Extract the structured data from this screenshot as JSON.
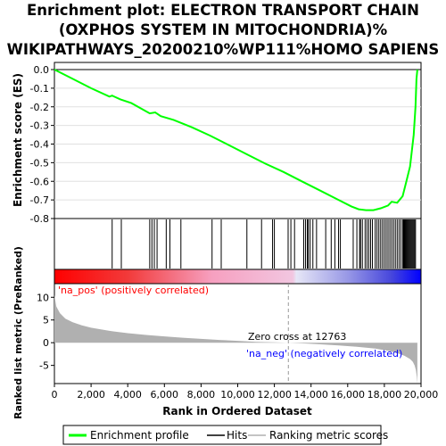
{
  "chart_data": {
    "type": "line",
    "title_lines": [
      "Enrichment plot: ELECTRON TRANSPORT CHAIN",
      "(OXPHOS SYSTEM IN MITOCHONDRIA)%",
      "WIKIPATHWAYS_20200210%WP111%HOMO SAPIENS"
    ],
    "es_panel": {
      "ylabel": "Enrichment score (ES)",
      "ylim": [
        -0.8,
        0.0
      ],
      "yticks": [
        "0.0",
        "-0.1",
        "-0.2",
        "-0.3",
        "-0.4",
        "-0.5",
        "-0.6",
        "-0.7",
        "-0.8"
      ],
      "series": [
        {
          "name": "Enrichment profile",
          "color": "#00ff00",
          "x": [
            0,
            1000,
            2000,
            3000,
            3150,
            3600,
            4200,
            5200,
            5500,
            5800,
            6500,
            7500,
            8500,
            9500,
            10500,
            11500,
            12500,
            13500,
            14500,
            15500,
            16200,
            16600,
            17000,
            17400,
            17800,
            18200,
            18400,
            18700,
            19000,
            19200,
            19400,
            19600,
            19700,
            19750,
            19800
          ],
          "y": [
            0.0,
            -0.05,
            -0.1,
            -0.145,
            -0.14,
            -0.16,
            -0.18,
            -0.235,
            -0.23,
            -0.25,
            -0.27,
            -0.31,
            -0.355,
            -0.405,
            -0.455,
            -0.505,
            -0.55,
            -0.6,
            -0.65,
            -0.7,
            -0.735,
            -0.75,
            -0.755,
            -0.755,
            -0.745,
            -0.73,
            -0.71,
            -0.715,
            -0.68,
            -0.6,
            -0.52,
            -0.35,
            -0.2,
            -0.05,
            0.0
          ]
        }
      ]
    },
    "hits": {
      "name": "Hits",
      "x": [
        3150,
        3650,
        5200,
        5320,
        5450,
        5600,
        6100,
        6300,
        6900,
        8600,
        9100,
        10500,
        11300,
        11900,
        12000,
        12750,
        12900,
        13100,
        13600,
        13700,
        13800,
        13850,
        13950,
        14100,
        14300,
        14800,
        15100,
        15300,
        15500,
        15600,
        16300,
        16500,
        16650,
        16700,
        16800,
        16950,
        17050,
        17150,
        17250,
        17350,
        17500,
        17600,
        17700,
        17800,
        17900,
        18000,
        18100,
        18200,
        18300,
        18400,
        18500,
        18600,
        18700,
        18800,
        18900,
        19000,
        19050,
        19100,
        19150,
        19200,
        19250,
        19300,
        19350,
        19400,
        19450,
        19500,
        19550,
        19600,
        19650,
        19700
      ]
    },
    "metric_panel": {
      "ylabel": "Ranked list metric (PreRanked)",
      "ylim": [
        -9,
        13
      ],
      "yticks": [
        "10",
        "5",
        "0",
        "-5"
      ],
      "series": [
        {
          "name": "Ranking metric scores",
          "color": "#b0b0b0",
          "x": [
            0,
            100,
            300,
            600,
            1000,
            1500,
            2000,
            3000,
            4000,
            5000,
            6000,
            7000,
            8000,
            9000,
            10000,
            11000,
            12000,
            12763,
            13500,
            14500,
            15500,
            16500,
            17500,
            18200,
            18700,
            19100,
            19400,
            19550,
            19650,
            19720,
            19770,
            19800
          ],
          "y": [
            10.5,
            8.0,
            6.5,
            5.3,
            4.5,
            3.8,
            3.3,
            2.6,
            2.1,
            1.7,
            1.4,
            1.1,
            0.85,
            0.6,
            0.4,
            0.2,
            0.08,
            0.0,
            -0.15,
            -0.35,
            -0.6,
            -0.9,
            -1.3,
            -1.8,
            -2.3,
            -2.9,
            -3.6,
            -4.2,
            -5.0,
            -6.0,
            -7.5,
            -9.0
          ]
        }
      ],
      "zero_cross_label": "Zero cross at 12763",
      "zero_cross_x": 12763,
      "pos_label": "'na_pos' (positively correlated)",
      "neg_label": "'na_neg' (negatively correlated)",
      "pos_color": "#ff0000",
      "neg_color": "#0000ff"
    },
    "xlabel": "Rank in Ordered Dataset",
    "xlim": [
      0,
      20000
    ],
    "xticks": [
      "0",
      "2,000",
      "4,000",
      "6,000",
      "8,000",
      "10,000",
      "12,000",
      "14,000",
      "16,000",
      "18,000",
      "20,000"
    ],
    "legend": {
      "placement": "bottom",
      "entries": [
        {
          "label": "Enrichment profile",
          "color": "#00ff00"
        },
        {
          "label": "Hits",
          "color": "#000000"
        },
        {
          "label": "Ranking metric scores",
          "color": "#b0b0b0"
        }
      ]
    }
  }
}
